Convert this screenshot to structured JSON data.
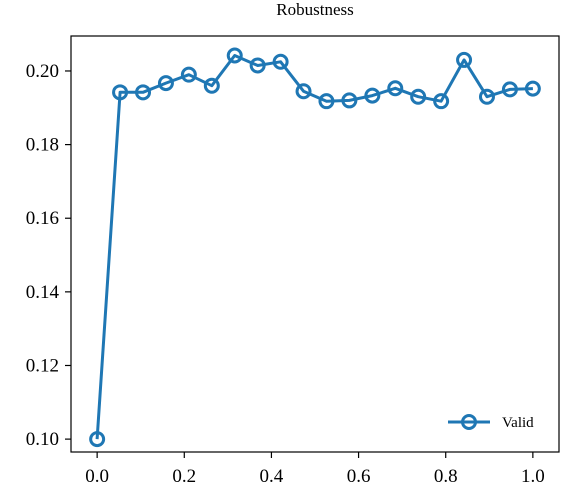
{
  "chart_data": {
    "type": "line",
    "title": "Robustness",
    "xlabel": "",
    "ylabel": "",
    "xlim": [
      -0.06,
      1.06
    ],
    "ylim": [
      0.0965,
      0.2095
    ],
    "xticks": [
      0.0,
      0.2,
      0.4,
      0.6,
      0.8,
      1.0
    ],
    "xtick_labels": [
      "0.0",
      "0.2",
      "0.4",
      "0.6",
      "0.8",
      "1.0"
    ],
    "yticks": [
      0.1,
      0.12,
      0.14,
      0.16,
      0.18,
      0.2
    ],
    "ytick_labels": [
      "0.10",
      "0.12",
      "0.14",
      "0.16",
      "0.18",
      "0.20"
    ],
    "grid": false,
    "legend_position": "lower right",
    "series": [
      {
        "name": "Valid",
        "color": "#1f77b4",
        "marker": "circle-open",
        "x": [
          0.0,
          0.0526,
          0.1053,
          0.1579,
          0.2105,
          0.2632,
          0.3158,
          0.3684,
          0.4211,
          0.4737,
          0.5263,
          0.5789,
          0.6316,
          0.6842,
          0.7368,
          0.7895,
          0.8421,
          0.8947,
          0.9474,
          1.0
        ],
        "y": [
          0.1,
          0.1942,
          0.1942,
          0.1967,
          0.199,
          0.196,
          0.2042,
          0.2015,
          0.2025,
          0.1945,
          0.1918,
          0.192,
          0.1933,
          0.1953,
          0.193,
          0.1918,
          0.203,
          0.193,
          0.195,
          0.1952
        ]
      }
    ]
  }
}
